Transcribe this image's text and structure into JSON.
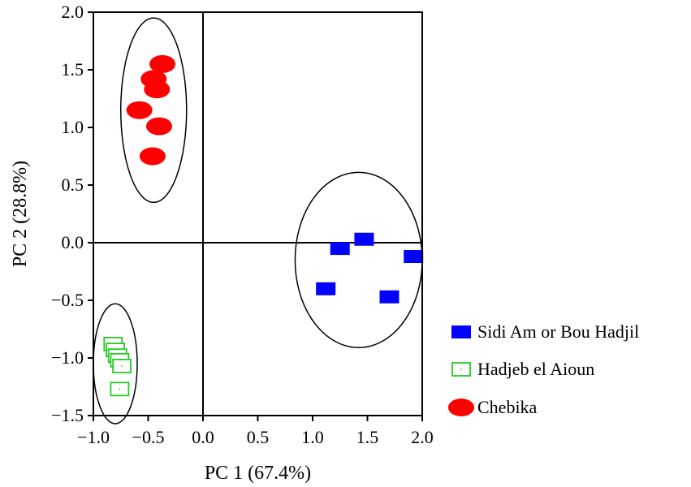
{
  "chart_data": {
    "type": "scatter",
    "title": "",
    "xlabel": "PC 1 (67.4%)",
    "ylabel": "PC 2 (28.8%)",
    "xlim": [
      -1.0,
      2.0
    ],
    "ylim": [
      -1.5,
      2.0
    ],
    "xticks": [
      "−1.0",
      "−0.5",
      "0.0",
      "0.5",
      "1.0",
      "1.5",
      "2.0"
    ],
    "yticks": [
      "−1.5",
      "−1.0",
      "−0.5",
      "0.0",
      "0.5",
      "1.0",
      "1.5",
      "2.0"
    ],
    "grid": false,
    "zero_lines": true,
    "legend_position": "bottom-right, outside plot",
    "series": [
      {
        "name": "Sidi Am or Bou Hadjil",
        "marker": "filled-square",
        "color": "#0000ff",
        "points": [
          [
            1.25,
            -0.05
          ],
          [
            1.47,
            0.03
          ],
          [
            1.92,
            -0.12
          ],
          [
            1.12,
            -0.4
          ],
          [
            1.7,
            -0.47
          ]
        ]
      },
      {
        "name": "Hadjeb el Aioun",
        "marker": "open-square",
        "color": "#22cc22",
        "points": [
          [
            -0.82,
            -0.88
          ],
          [
            -0.8,
            -0.93
          ],
          [
            -0.78,
            -0.98
          ],
          [
            -0.76,
            -1.02
          ],
          [
            -0.74,
            -1.07
          ],
          [
            -0.76,
            -1.27
          ]
        ]
      },
      {
        "name": "Chebika",
        "marker": "filled-ellipse",
        "color": "#ff0000",
        "points": [
          [
            -0.37,
            1.55
          ],
          [
            -0.45,
            1.42
          ],
          [
            -0.42,
            1.33
          ],
          [
            -0.58,
            1.15
          ],
          [
            -0.4,
            1.01
          ],
          [
            -0.46,
            0.75
          ]
        ]
      }
    ],
    "cluster_ellipses": [
      {
        "group": "Chebika",
        "cx": -0.45,
        "cy": 1.15,
        "rx": 0.3,
        "ry": 0.8
      },
      {
        "group": "Sidi Am or Bou Hadjil",
        "cx": 1.42,
        "cy": -0.15,
        "rx": 0.58,
        "ry": 0.76
      },
      {
        "group": "Hadjeb el Aioun",
        "cx": -0.8,
        "cy": -1.05,
        "rx": 0.2,
        "ry": 0.52
      }
    ]
  }
}
